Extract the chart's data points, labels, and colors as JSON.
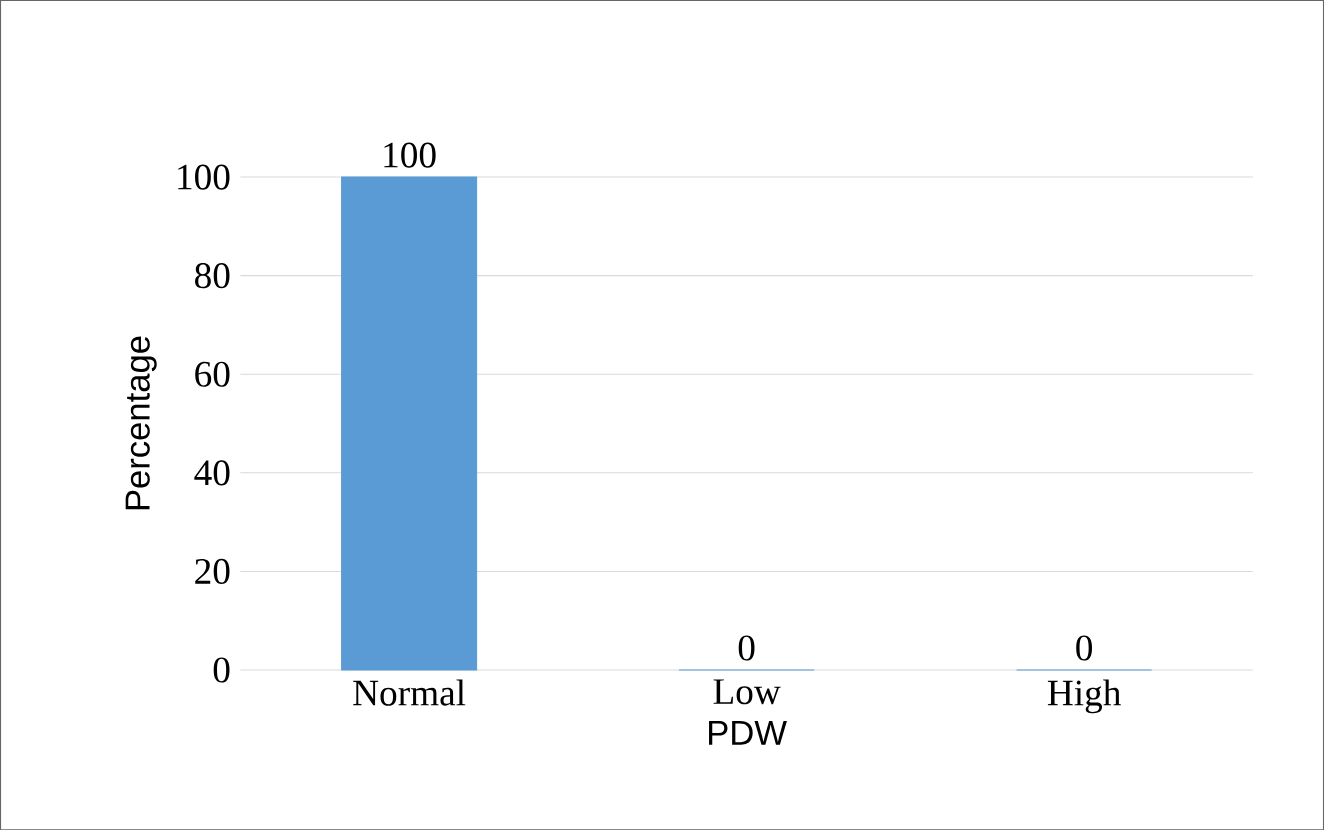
{
  "chart_data": {
    "type": "bar",
    "xlabel": "PDW",
    "ylabel": "Percentage",
    "categories": [
      "Normal",
      "Low",
      "High"
    ],
    "values": [
      100,
      0,
      0
    ],
    "color": "#5b9bd5",
    "ylim": [
      0,
      100
    ],
    "yticks": [
      0,
      20,
      40,
      60,
      80,
      100
    ],
    "grid": "y",
    "data_labels": true
  }
}
